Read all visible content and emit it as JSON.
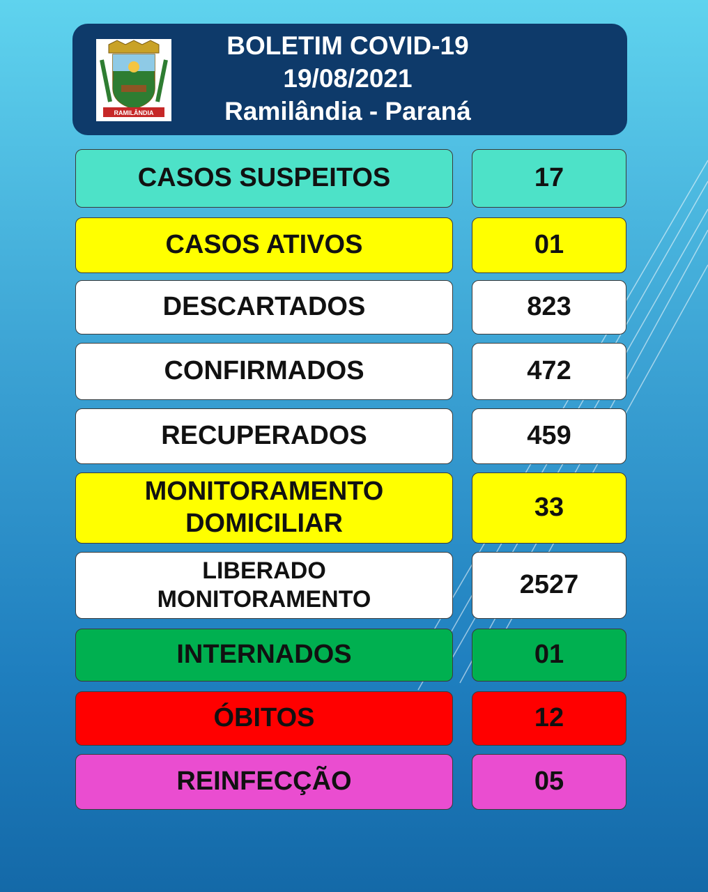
{
  "header": {
    "title": "BOLETIM COVID-19",
    "date": "19/08/2021",
    "location": "Ramilândia - Paraná",
    "crest_text": "RAMILÂNDIA"
  },
  "rows": [
    {
      "label": "CASOS SUSPEITOS",
      "value": "17",
      "color": "#4de2c8"
    },
    {
      "label": "CASOS ATIVOS",
      "value": "01",
      "color": "#ffff00"
    },
    {
      "label": "DESCARTADOS",
      "value": "823",
      "color": "#ffffff"
    },
    {
      "label": "CONFIRMADOS",
      "value": "472",
      "color": "#ffffff"
    },
    {
      "label": "RECUPERADOS",
      "value": "459",
      "color": "#ffffff"
    },
    {
      "label_line1": "MONITORAMENTO",
      "label_line2": "DOMICILIAR",
      "value": "33",
      "color": "#ffff00"
    },
    {
      "label_line1": "LIBERADO",
      "label_line2": "MONITORAMENTO",
      "value": "2527",
      "color": "#ffffff"
    },
    {
      "label": "INTERNADOS",
      "value": "01",
      "color": "#00b050"
    },
    {
      "label": "ÓBITOS",
      "value": "12",
      "color": "#ff0000"
    },
    {
      "label": "REINFECÇÃO",
      "value": "05",
      "color": "#ea4dd0"
    }
  ]
}
